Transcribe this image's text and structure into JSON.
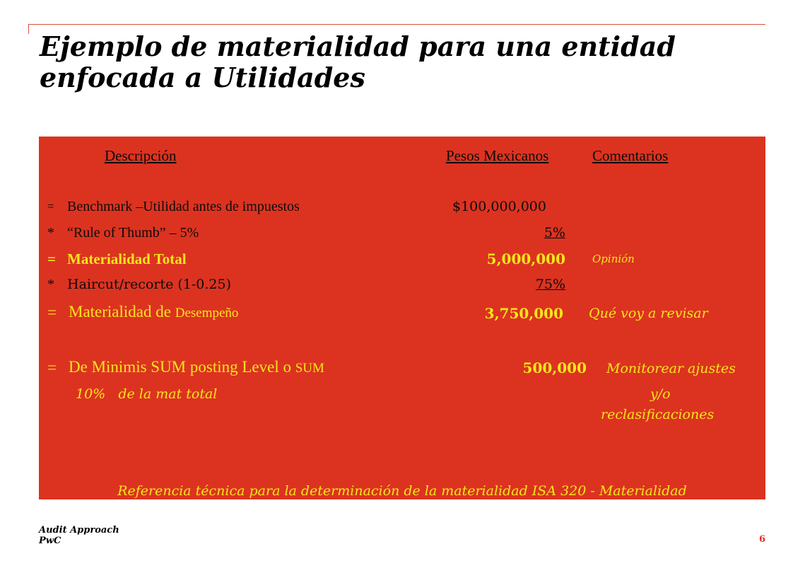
{
  "title": {
    "line1": "Ejemplo de materialidad para una entidad",
    "line2": "enfocada a Utilidades"
  },
  "table": {
    "headers": {
      "description": "Descripción",
      "pesos": "Pesos Mexicanos ",
      "comments": "Comentarios"
    },
    "rows": [
      {
        "op": "=",
        "label": "Benchmark –Utilidad antes de impuestos",
        "value": "$100,000,000",
        "comment": ""
      },
      {
        "op": "*",
        "label": "“Rule of Thumb” – 5%",
        "value": "5%",
        "comment": ""
      },
      {
        "op": "=",
        "label": "Materialidad Total",
        "value": "5,000,000",
        "comment": "Opinión"
      },
      {
        "op": "*",
        "label": "Haircut/recorte (1-0.25)",
        "value": "75%",
        "comment": ""
      },
      {
        "op": "=",
        "label_a": "Materialidad de",
        "label_b": "Desempeño",
        "value": "3,750,000",
        "comment": "Qué voy a revisar"
      },
      {
        "op": "=",
        "label_a": "De Minimis SUM posting Level o",
        "label_b": "SUM",
        "value": "500,000",
        "comment": "Monitorear ajustes"
      }
    ],
    "sub_note": "10%   de la mat total",
    "comment_cont_1": "y/o",
    "comment_cont_2": "reclasificaciones",
    "reference": "Referencia técnica para la determinación de la materialidad ISA 320 - Materialidad"
  },
  "footer": {
    "line1": "Audit Approach",
    "line2": "PwC",
    "page": "6"
  },
  "colors": {
    "panel": "#dc3320",
    "highlight": "#f5e61a",
    "text": "#0b0b0b"
  }
}
